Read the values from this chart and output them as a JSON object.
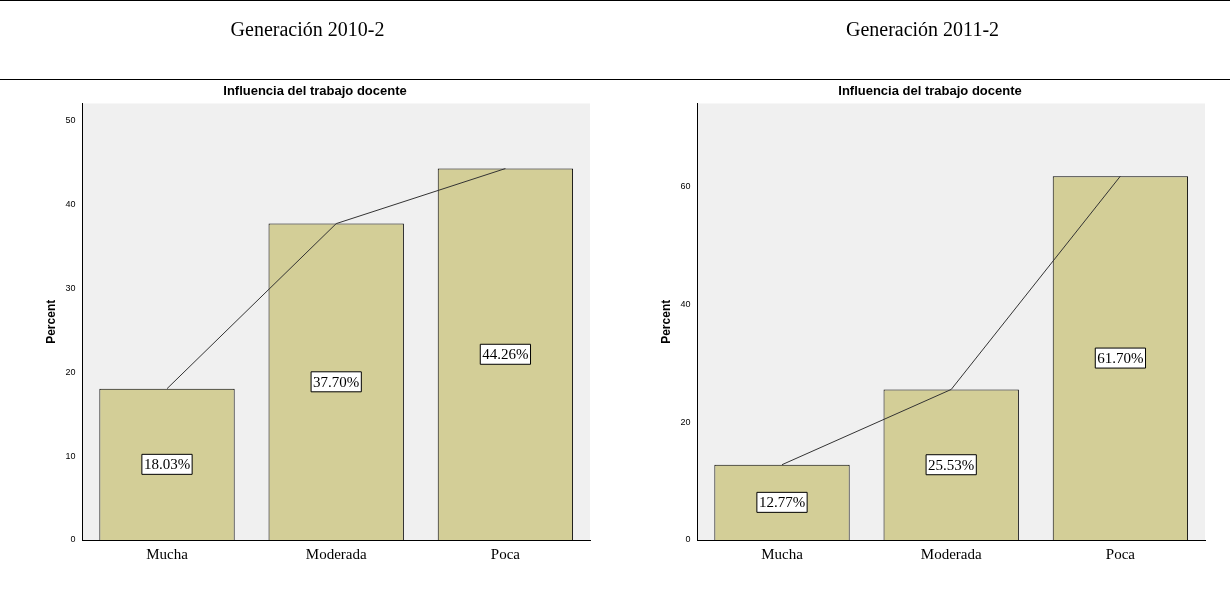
{
  "chart_data": [
    {
      "type": "bar",
      "subtitle": "Generación 2010-2",
      "title": "Influencia del trabajo docente",
      "ylabel": "Percent",
      "categories": [
        "Mucha",
        "Moderada",
        "Poca"
      ],
      "series": [
        {
          "color": "#d3ce97",
          "values": [
            18.03,
            37.7,
            44.26
          ],
          "value_labels": [
            "18.03%",
            "37.70%",
            "44.26%"
          ]
        },
        {
          "type": "line",
          "color": "#333333",
          "values": [
            18.03,
            37.7,
            44.26
          ]
        }
      ],
      "ylim": [
        0,
        52
      ],
      "yticks": [
        0,
        10,
        20,
        30,
        40,
        50
      ],
      "grid": false,
      "marker": "none"
    },
    {
      "type": "bar",
      "subtitle": "Generación 2011-2",
      "title": "Influencia del trabajo docente",
      "ylabel": "Percent",
      "categories": [
        "Mucha",
        "Moderada",
        "Poca"
      ],
      "series": [
        {
          "color": "#d3ce97",
          "values": [
            12.77,
            25.53,
            61.7
          ],
          "value_labels": [
            "12.77%",
            "25.53%",
            "61.70%"
          ]
        },
        {
          "type": "line",
          "color": "#333333",
          "values": [
            12.77,
            25.53,
            61.7
          ]
        }
      ],
      "ylim": [
        0,
        74
      ],
      "yticks": [
        0,
        20,
        40,
        60
      ],
      "grid": false,
      "marker": "none"
    }
  ]
}
